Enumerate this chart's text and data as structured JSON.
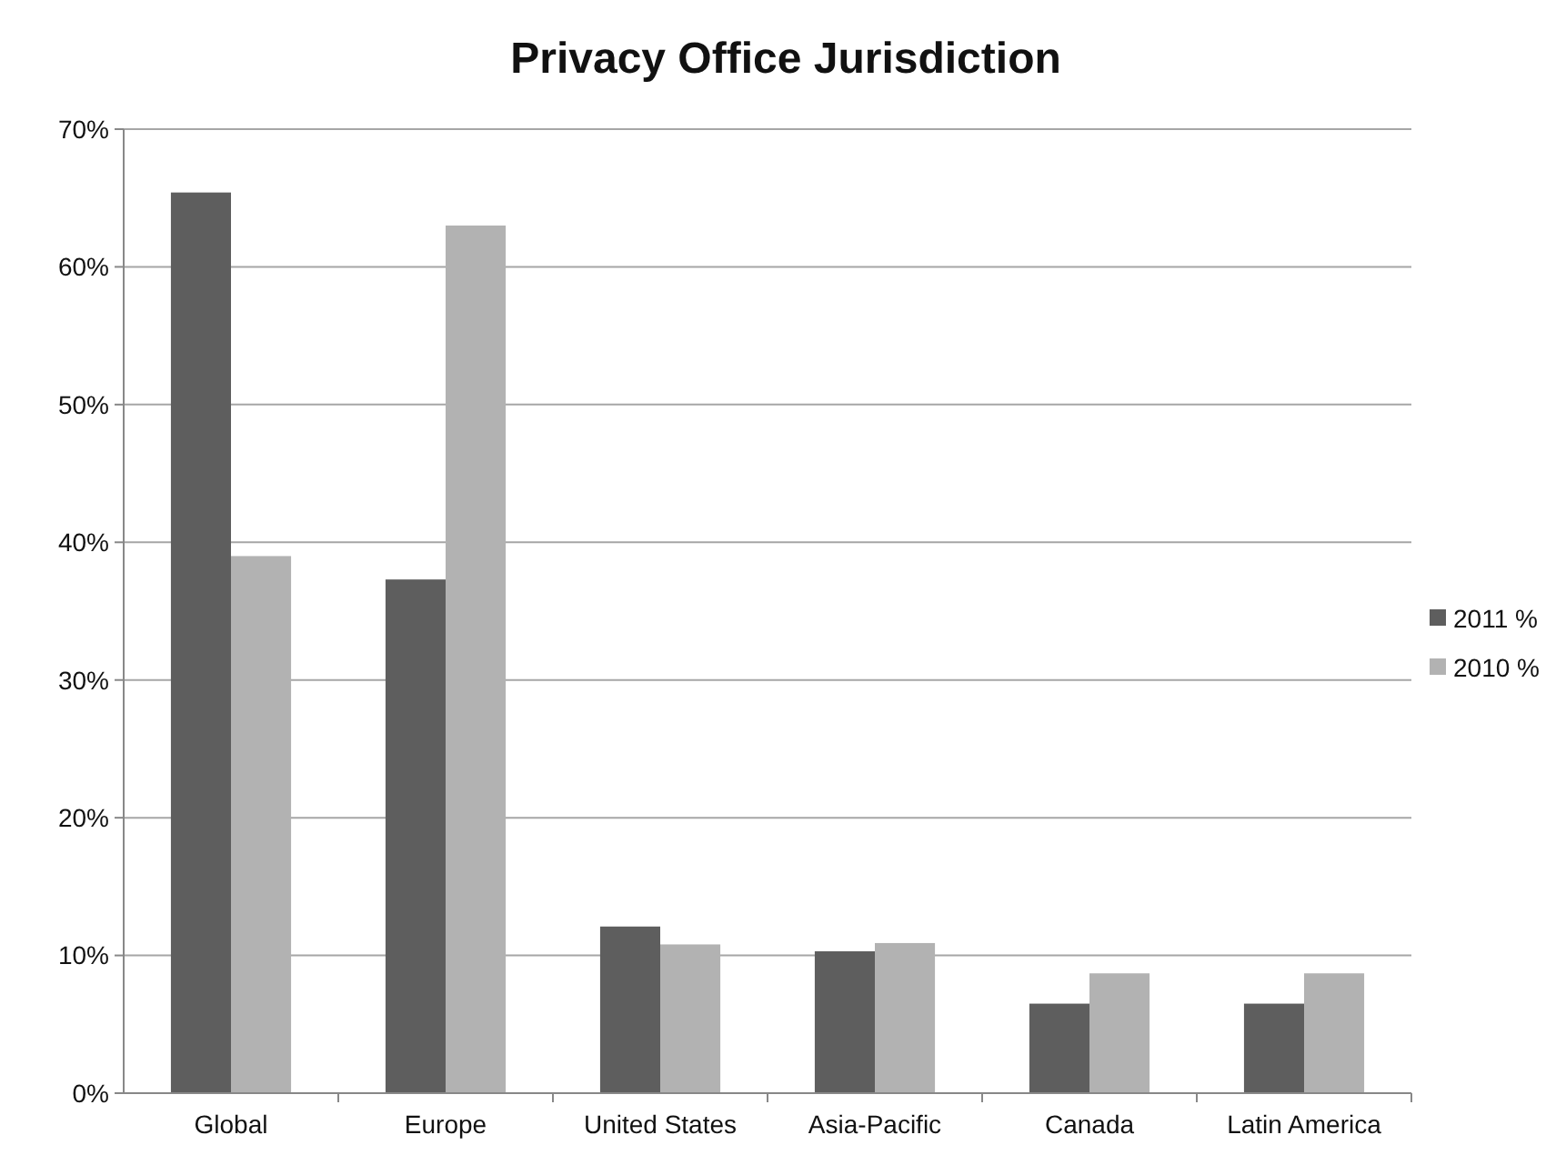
{
  "chart_data": {
    "type": "bar",
    "title": "Privacy Office Jurisdiction",
    "categories": [
      "Global",
      "Europe",
      "United States",
      "Asia-Pacific",
      "Canada",
      "Latin America"
    ],
    "series": [
      {
        "name": "2011 %",
        "color": "#5e5e5e",
        "values": [
          65.4,
          37.3,
          12.1,
          10.3,
          6.5,
          6.5
        ]
      },
      {
        "name": "2010 %",
        "color": "#b2b2b2",
        "values": [
          39.0,
          63.0,
          10.8,
          10.9,
          8.7,
          8.7
        ]
      }
    ],
    "ylim": [
      0,
      70
    ],
    "yticks": [
      {
        "value": 0,
        "label": "0%"
      },
      {
        "value": 10,
        "label": "10%"
      },
      {
        "value": 20,
        "label": "20%"
      },
      {
        "value": 30,
        "label": "30%"
      },
      {
        "value": 40,
        "label": "40%"
      },
      {
        "value": 50,
        "label": "50%"
      },
      {
        "value": 60,
        "label": "60%"
      },
      {
        "value": 70,
        "label": "70%"
      }
    ],
    "grid": "y",
    "legend": "right"
  }
}
